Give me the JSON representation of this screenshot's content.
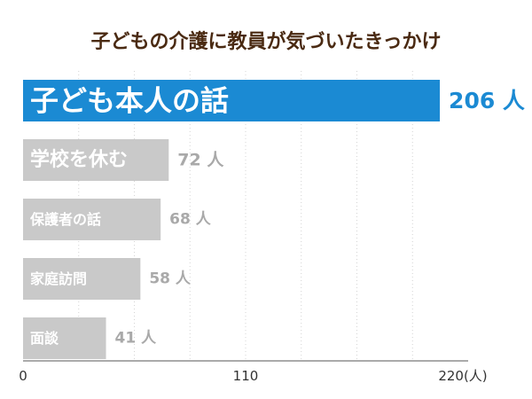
{
  "chart_data": {
    "type": "bar",
    "orientation": "horizontal",
    "title": "子どもの介護に教員が気づいたきっかけ",
    "categories": [
      "子ども本人の話",
      "学校を休む",
      "保護者の話",
      "家庭訪問",
      "面談"
    ],
    "values": [
      206,
      72,
      68,
      58,
      41
    ],
    "value_labels": [
      "206 人",
      "72 人",
      "68 人",
      "58 人",
      "41 人"
    ],
    "xlim": [
      0,
      220
    ],
    "x_ticks": [
      "0",
      "110",
      "220(人)"
    ],
    "grid": "vertical dotted lines",
    "colors": {
      "title": "#4a2a12",
      "highlight_bar": "#1b8ad3",
      "other_bars": "#c9c9c9",
      "highlight_value": "#1b8ad3",
      "other_values": "#a9a9a9",
      "axis": "#555555"
    }
  }
}
